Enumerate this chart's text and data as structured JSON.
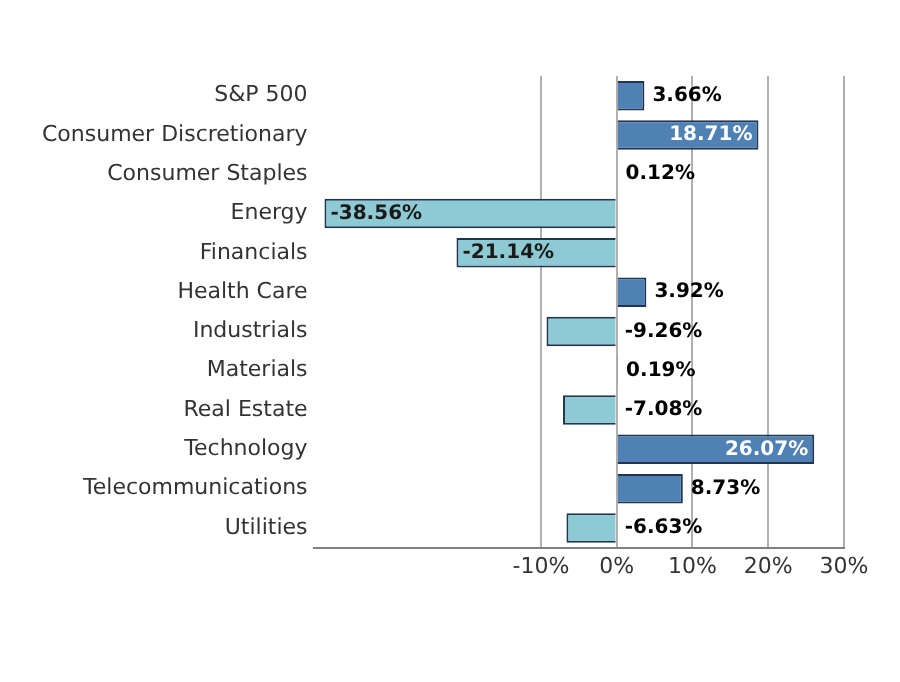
{
  "chart_data": {
    "type": "bar",
    "orientation": "horizontal",
    "categories": [
      "S&P 500",
      "Consumer Discretionary",
      "Consumer Staples",
      "Energy",
      "Financials",
      "Health Care",
      "Industrials",
      "Materials",
      "Real Estate",
      "Technology",
      "Telecommunications",
      "Utilities"
    ],
    "values": [
      3.66,
      18.71,
      0.12,
      -38.56,
      -21.14,
      3.92,
      -9.26,
      0.19,
      -7.08,
      26.07,
      8.73,
      -6.63
    ],
    "value_labels": [
      "3.66%",
      "18.71%",
      "0.12%",
      "-38.56%",
      "-21.14%",
      "3.92%",
      "-9.26%",
      "0.19%",
      "-7.08%",
      "26.07%",
      "8.73%",
      "-6.63%"
    ],
    "colors": [
      "#4f81b4",
      "#4f81b4",
      "#4f81b4",
      "#8ecad3",
      "#8ecad3",
      "#4f81b4",
      "#8ecad3",
      "#4f81b4",
      "#8ecad3",
      "#4f81b4",
      "#4f81b4",
      "#8ecad3"
    ],
    "xlim": [
      -40,
      30
    ],
    "xticks": [
      {
        "value": -10,
        "label": "-10%"
      },
      {
        "value": 0,
        "label": "0%"
      },
      {
        "value": 10,
        "label": "10%"
      },
      {
        "value": 20,
        "label": "20%"
      },
      {
        "value": 30,
        "label": "30%"
      }
    ],
    "grid": "x"
  }
}
